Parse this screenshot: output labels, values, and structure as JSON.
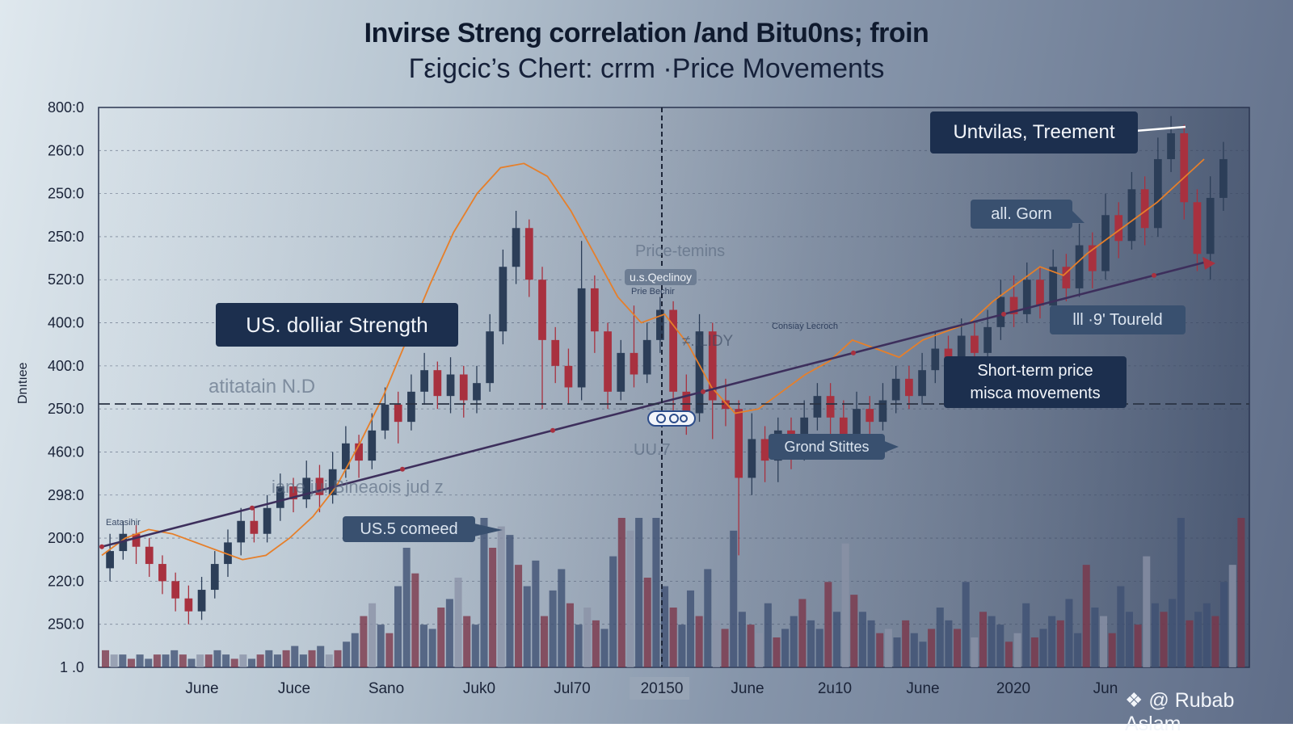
{
  "chart_data": {
    "type": "candlestick",
    "title": "Invirse Streng correlation /and Bitu0ns; froin",
    "subtitle": "Γεigcic’s Chert: crrm ·Price Movements",
    "ylabel": "Dnıtıee",
    "y_tick_labels": [
      "800:0",
      "260:0",
      "250:0",
      "250:0",
      "520:0",
      "400:0",
      "400:0",
      "250:0",
      "460:0",
      "298:0",
      "200:0",
      "220:0",
      "250:0",
      "1 .0"
    ],
    "x_tick_labels": [
      "June",
      "Juce",
      "Sano",
      "Juk0",
      "Jul70",
      "20150",
      "June",
      "2u10",
      "June",
      "2020",
      "Jun"
    ],
    "highlighted_x_label": "20150",
    "ylim": [
      0,
      13
    ],
    "candles": [
      {
        "o": 2.3,
        "c": 2.7,
        "h": 3.1,
        "l": 2.0
      },
      {
        "o": 2.7,
        "c": 3.1,
        "h": 3.4,
        "l": 2.5
      },
      {
        "o": 3.1,
        "c": 2.8,
        "h": 3.3,
        "l": 2.4
      },
      {
        "o": 2.8,
        "c": 2.4,
        "h": 3.0,
        "l": 2.1
      },
      {
        "o": 2.4,
        "c": 2.0,
        "h": 2.6,
        "l": 1.7
      },
      {
        "o": 2.0,
        "c": 1.6,
        "h": 2.2,
        "l": 1.3
      },
      {
        "o": 1.6,
        "c": 1.3,
        "h": 1.9,
        "l": 1.0
      },
      {
        "o": 1.3,
        "c": 1.8,
        "h": 2.1,
        "l": 1.1
      },
      {
        "o": 1.8,
        "c": 2.4,
        "h": 2.7,
        "l": 1.6
      },
      {
        "o": 2.4,
        "c": 2.9,
        "h": 3.2,
        "l": 2.1
      },
      {
        "o": 2.9,
        "c": 3.4,
        "h": 3.7,
        "l": 2.6
      },
      {
        "o": 3.4,
        "c": 3.1,
        "h": 3.7,
        "l": 2.9
      },
      {
        "o": 3.1,
        "c": 3.7,
        "h": 4.0,
        "l": 2.9
      },
      {
        "o": 3.7,
        "c": 4.2,
        "h": 4.5,
        "l": 3.4
      },
      {
        "o": 4.2,
        "c": 3.9,
        "h": 4.4,
        "l": 3.6
      },
      {
        "o": 3.9,
        "c": 4.4,
        "h": 4.8,
        "l": 3.7
      },
      {
        "o": 4.4,
        "c": 4.0,
        "h": 4.7,
        "l": 3.6
      },
      {
        "o": 4.0,
        "c": 4.6,
        "h": 5.0,
        "l": 3.8
      },
      {
        "o": 4.6,
        "c": 5.2,
        "h": 5.6,
        "l": 4.4
      },
      {
        "o": 5.2,
        "c": 4.8,
        "h": 5.4,
        "l": 4.4
      },
      {
        "o": 4.8,
        "c": 5.5,
        "h": 5.9,
        "l": 4.6
      },
      {
        "o": 5.5,
        "c": 6.1,
        "h": 6.5,
        "l": 5.3
      },
      {
        "o": 6.1,
        "c": 5.7,
        "h": 6.4,
        "l": 5.2
      },
      {
        "o": 5.7,
        "c": 6.4,
        "h": 6.8,
        "l": 5.5
      },
      {
        "o": 6.4,
        "c": 6.9,
        "h": 7.3,
        "l": 6.1
      },
      {
        "o": 6.9,
        "c": 6.3,
        "h": 7.1,
        "l": 6.0
      },
      {
        "o": 6.3,
        "c": 6.8,
        "h": 7.2,
        "l": 5.9
      },
      {
        "o": 6.8,
        "c": 6.2,
        "h": 7.0,
        "l": 5.8
      },
      {
        "o": 6.2,
        "c": 6.6,
        "h": 7.0,
        "l": 5.9
      },
      {
        "o": 6.6,
        "c": 7.8,
        "h": 8.2,
        "l": 6.4
      },
      {
        "o": 7.8,
        "c": 9.3,
        "h": 9.7,
        "l": 7.5
      },
      {
        "o": 9.3,
        "c": 10.2,
        "h": 10.6,
        "l": 8.9
      },
      {
        "o": 10.2,
        "c": 9.0,
        "h": 10.4,
        "l": 8.6
      },
      {
        "o": 9.0,
        "c": 7.6,
        "h": 9.3,
        "l": 6.0
      },
      {
        "o": 7.6,
        "c": 7.0,
        "h": 7.9,
        "l": 6.6
      },
      {
        "o": 7.0,
        "c": 6.5,
        "h": 7.4,
        "l": 6.1
      },
      {
        "o": 6.5,
        "c": 8.8,
        "h": 9.9,
        "l": 6.2
      },
      {
        "o": 8.8,
        "c": 7.8,
        "h": 9.1,
        "l": 7.3
      },
      {
        "o": 7.8,
        "c": 6.4,
        "h": 8.0,
        "l": 6.0
      },
      {
        "o": 6.4,
        "c": 7.3,
        "h": 7.6,
        "l": 6.2
      },
      {
        "o": 7.3,
        "c": 6.8,
        "h": 8.4,
        "l": 6.5
      },
      {
        "o": 6.8,
        "c": 7.6,
        "h": 8.0,
        "l": 6.6
      },
      {
        "o": 7.6,
        "c": 8.3,
        "h": 8.6,
        "l": 7.3
      },
      {
        "o": 8.3,
        "c": 6.4,
        "h": 8.5,
        "l": 5.8
      },
      {
        "o": 6.4,
        "c": 5.9,
        "h": 6.8,
        "l": 5.4
      },
      {
        "o": 5.9,
        "c": 7.8,
        "h": 8.2,
        "l": 5.7
      },
      {
        "o": 7.8,
        "c": 6.2,
        "h": 8.0,
        "l": 5.3
      },
      {
        "o": 6.2,
        "c": 6.0,
        "h": 6.7,
        "l": 5.6
      },
      {
        "o": 6.0,
        "c": 4.4,
        "h": 6.2,
        "l": 2.6
      },
      {
        "o": 4.4,
        "c": 5.3,
        "h": 5.9,
        "l": 4.0
      },
      {
        "o": 5.3,
        "c": 4.8,
        "h": 5.6,
        "l": 4.3
      },
      {
        "o": 4.8,
        "c": 5.5,
        "h": 5.8,
        "l": 4.3
      },
      {
        "o": 5.5,
        "c": 5.0,
        "h": 5.8,
        "l": 4.6
      },
      {
        "o": 5.0,
        "c": 5.8,
        "h": 6.2,
        "l": 4.8
      },
      {
        "o": 5.8,
        "c": 6.3,
        "h": 6.6,
        "l": 5.5
      },
      {
        "o": 6.3,
        "c": 5.8,
        "h": 6.6,
        "l": 5.4
      },
      {
        "o": 5.8,
        "c": 5.4,
        "h": 6.2,
        "l": 5.0
      },
      {
        "o": 5.4,
        "c": 6.0,
        "h": 6.4,
        "l": 5.1
      },
      {
        "o": 6.0,
        "c": 5.7,
        "h": 6.3,
        "l": 5.3
      },
      {
        "o": 5.7,
        "c": 6.2,
        "h": 6.6,
        "l": 5.5
      },
      {
        "o": 6.2,
        "c": 6.7,
        "h": 7.0,
        "l": 5.9
      },
      {
        "o": 6.7,
        "c": 6.3,
        "h": 7.0,
        "l": 6.0
      },
      {
        "o": 6.3,
        "c": 6.9,
        "h": 7.3,
        "l": 6.1
      },
      {
        "o": 6.9,
        "c": 7.4,
        "h": 7.8,
        "l": 6.6
      },
      {
        "o": 7.4,
        "c": 7.1,
        "h": 7.7,
        "l": 6.8
      },
      {
        "o": 7.1,
        "c": 7.7,
        "h": 8.1,
        "l": 6.9
      },
      {
        "o": 7.7,
        "c": 7.3,
        "h": 8.0,
        "l": 7.0
      },
      {
        "o": 7.3,
        "c": 7.9,
        "h": 8.3,
        "l": 7.1
      },
      {
        "o": 7.9,
        "c": 8.6,
        "h": 9.0,
        "l": 7.6
      },
      {
        "o": 8.6,
        "c": 8.2,
        "h": 9.1,
        "l": 7.9
      },
      {
        "o": 8.2,
        "c": 9.0,
        "h": 9.4,
        "l": 8.0
      },
      {
        "o": 9.0,
        "c": 8.4,
        "h": 9.3,
        "l": 8.1
      },
      {
        "o": 8.4,
        "c": 9.3,
        "h": 9.7,
        "l": 8.2
      },
      {
        "o": 9.3,
        "c": 8.8,
        "h": 9.6,
        "l": 8.5
      },
      {
        "o": 8.8,
        "c": 9.8,
        "h": 10.3,
        "l": 8.6
      },
      {
        "o": 9.8,
        "c": 9.2,
        "h": 10.1,
        "l": 8.8
      },
      {
        "o": 9.2,
        "c": 10.5,
        "h": 11.0,
        "l": 9.0
      },
      {
        "o": 10.5,
        "c": 9.9,
        "h": 10.8,
        "l": 9.5
      },
      {
        "o": 9.9,
        "c": 11.1,
        "h": 11.5,
        "l": 9.7
      },
      {
        "o": 11.1,
        "c": 10.2,
        "h": 11.4,
        "l": 9.8
      },
      {
        "o": 10.2,
        "c": 11.8,
        "h": 12.3,
        "l": 10.0
      },
      {
        "o": 11.8,
        "c": 12.4,
        "h": 12.8,
        "l": 11.5
      },
      {
        "o": 12.4,
        "c": 10.8,
        "h": 12.6,
        "l": 10.4
      },
      {
        "o": 10.8,
        "c": 9.6,
        "h": 11.1,
        "l": 9.2
      },
      {
        "o": 9.6,
        "c": 10.9,
        "h": 11.4,
        "l": 9.0
      },
      {
        "o": 10.9,
        "c": 11.8,
        "h": 12.2,
        "l": 10.6
      }
    ],
    "series": [
      {
        "name": "Orange price line",
        "values": [
          2.6,
          3.0,
          3.2,
          3.1,
          2.9,
          2.7,
          2.5,
          2.6,
          3.0,
          3.5,
          4.2,
          5.2,
          6.3,
          7.6,
          8.9,
          10.1,
          11.0,
          11.6,
          11.7,
          11.4,
          10.6,
          9.6,
          8.6,
          8.0,
          8.2,
          7.5,
          6.5,
          5.9,
          6.0,
          6.4,
          6.8,
          7.1,
          7.6,
          7.4,
          7.2,
          7.6,
          7.8,
          8.0,
          8.5,
          8.9,
          9.3,
          9.1,
          9.6,
          10.0,
          10.4,
          10.8,
          11.3,
          11.8
        ]
      },
      {
        "name": "US dollar trend",
        "values": [
          2.8,
          3.1,
          3.4,
          3.7,
          4.0,
          4.3,
          4.6,
          4.9,
          5.2,
          5.5,
          5.8,
          6.1,
          6.4,
          6.7,
          7.0,
          7.3,
          7.6,
          7.9,
          8.2,
          8.5,
          8.8,
          9.1,
          9.4
        ]
      }
    ],
    "volume": [
      0.4,
      0.3,
      0.3,
      0.2,
      0.3,
      0.2,
      0.3,
      0.3,
      0.4,
      0.3,
      0.2,
      0.3,
      0.3,
      0.4,
      0.3,
      0.2,
      0.3,
      0.2,
      0.3,
      0.4,
      0.3,
      0.4,
      0.5,
      0.3,
      0.4,
      0.5,
      0.3,
      0.4,
      0.6,
      0.8,
      1.2,
      1.5,
      1.0,
      0.8,
      1.9,
      2.8,
      2.2,
      1.0,
      0.9,
      1.4,
      1.6,
      2.1,
      1.2,
      1.0,
      3.5,
      2.8,
      3.3,
      3.1,
      2.4,
      1.9,
      2.5,
      1.2,
      1.8,
      2.3,
      1.5,
      1.0,
      1.4,
      1.1,
      0.9,
      2.6,
      3.5,
      3.2,
      3.5,
      2.1,
      3.5,
      1.9,
      1.4,
      1.0,
      1.8,
      1.2,
      2.3,
      1.1,
      0.9,
      3.2,
      1.3,
      1.0,
      0.8,
      1.5,
      0.7,
      0.9,
      1.2,
      1.6,
      1.1,
      0.9,
      2.0,
      1.3,
      2.9,
      1.7,
      1.3,
      1.1,
      0.8,
      0.9,
      0.7,
      1.1,
      0.8,
      0.6,
      0.9,
      1.4,
      1.1,
      0.9,
      2.0,
      0.7,
      1.3,
      1.2,
      1.0,
      0.6,
      0.8,
      1.5,
      0.7,
      0.9,
      1.2,
      1.1,
      1.6,
      0.8,
      2.4,
      1.4,
      1.2,
      0.8,
      1.9,
      1.3,
      1.0,
      2.6,
      1.5,
      1.3,
      1.6,
      3.5,
      1.1,
      1.3,
      1.5,
      1.2,
      2.0,
      2.4,
      3.5
    ],
    "annotations": {
      "us_dollar_strength": "US. dolliar Strength",
      "untvilas": "Untvilas, Treement",
      "all_gorn": "all. Gorn",
      "toureld": "lll ·9ʹ Toureld",
      "short_term": "Short-term price\nmisca movements",
      "grond_stittes": "Grond Stittes",
      "us5_comeed": "US.5 comeed",
      "price_temins": "Price-temins",
      "us_qeclinoy": "u.s.Qeclinoy",
      "prie_bechir": "Prie Bechir",
      "filidy": "≠.ILIDY",
      "consiay": "Consiay Lecroch",
      "ghost_1": "atitatain N.D",
      "ghost_2": "iane jui Bineaois jud z",
      "ghost_3": "UU.7",
      "etcashir": "Eatasihir"
    }
  },
  "credit": "@ Rubab Aslam",
  "colors": {
    "bull": "#2c3e58",
    "bear": "#a8313f",
    "orange": "#e67f2a",
    "trend": "#3d2f5c",
    "dark_box": "#1c2f4e"
  }
}
